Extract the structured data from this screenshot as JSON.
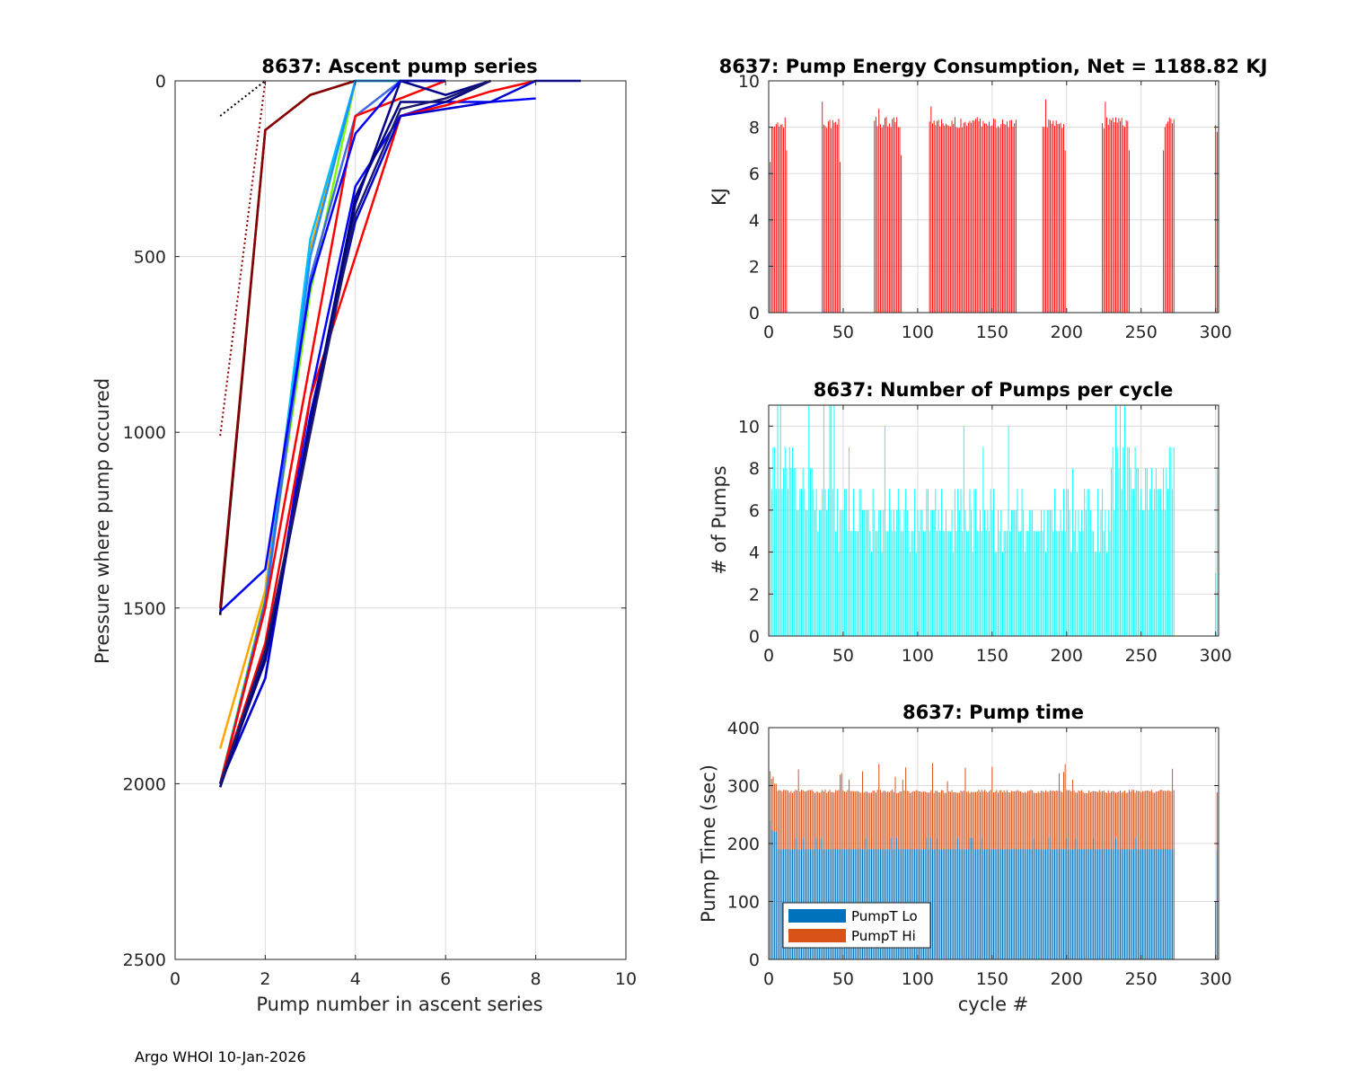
{
  "footer": "Argo WHOI 10-Jan-2026",
  "colors": {
    "energy": "#ff0000",
    "pumps": "#00ffff",
    "pumpLo": "#0072bd",
    "pumpHi": "#d95319",
    "grid": "#dcdcdc",
    "axis": "#262626"
  },
  "chart_data": [
    {
      "id": "ascent",
      "type": "line",
      "title": "8637: Ascent pump series",
      "xlabel": "Pump number in ascent series",
      "ylabel": "Pressure where pump occured",
      "xlim": [
        0,
        10
      ],
      "ylim": [
        0,
        2500
      ],
      "y_reversed": true,
      "xticks": [
        0,
        2,
        4,
        6,
        8,
        10
      ],
      "yticks": [
        0,
        500,
        1000,
        1500,
        2000,
        2500
      ],
      "grid": true,
      "series": [
        {
          "color": "#000000",
          "dotted": true,
          "x": [
            1,
            2
          ],
          "y": [
            100,
            0
          ]
        },
        {
          "color": "#8b0000",
          "dotted": true,
          "x": [
            1,
            2
          ],
          "y": [
            1010,
            0
          ]
        },
        {
          "color": "#000000",
          "x": [
            1,
            2,
            3,
            4
          ],
          "y": [
            1520,
            140,
            40,
            0
          ]
        },
        {
          "color": "#8b0000",
          "x": [
            1,
            2,
            3,
            4
          ],
          "y": [
            1500,
            140,
            40,
            0
          ]
        },
        {
          "color": "#ffa500",
          "x": [
            1,
            2,
            3,
            4,
            5,
            6
          ],
          "y": [
            1900,
            1450,
            480,
            0,
            0,
            0
          ]
        },
        {
          "color": "#7cfc00",
          "x": [
            1,
            2,
            3,
            4,
            5
          ],
          "y": [
            2000,
            1470,
            600,
            0,
            0
          ]
        },
        {
          "color": "#00bfff",
          "x": [
            1,
            2,
            3,
            4,
            5
          ],
          "y": [
            2000,
            1480,
            450,
            0,
            0
          ]
        },
        {
          "color": "#1e90ff",
          "x": [
            1,
            2,
            3,
            4,
            5,
            6
          ],
          "y": [
            2000,
            1500,
            500,
            0,
            0,
            0
          ]
        },
        {
          "color": "#4169e1",
          "x": [
            1,
            2,
            3,
            4,
            5,
            6
          ],
          "y": [
            2010,
            1480,
            560,
            100,
            0,
            0
          ]
        },
        {
          "color": "#0000ff",
          "x": [
            1,
            2,
            3,
            4,
            5,
            6,
            7,
            8
          ],
          "y": [
            2000,
            1700,
            900,
            300,
            100,
            60,
            60,
            50
          ]
        },
        {
          "color": "#ff0000",
          "x": [
            1,
            2,
            3,
            4,
            5,
            6,
            7,
            8
          ],
          "y": [
            2000,
            1600,
            900,
            500,
            100,
            70,
            30,
            0
          ]
        },
        {
          "color": "#ff0000",
          "x": [
            1,
            2,
            3,
            4,
            5,
            6
          ],
          "y": [
            2000,
            1500,
            800,
            100,
            50,
            0
          ]
        },
        {
          "color": "#0000cd",
          "x": [
            1,
            2,
            3,
            4,
            5,
            6,
            7,
            8,
            9
          ],
          "y": [
            2000,
            1700,
            950,
            400,
            100,
            80,
            60,
            0,
            0
          ]
        },
        {
          "color": "#00008b",
          "x": [
            1,
            2,
            3,
            4,
            5,
            6,
            7
          ],
          "y": [
            2000,
            1650,
            1000,
            350,
            0,
            40,
            0
          ]
        },
        {
          "color": "#000080",
          "x": [
            1,
            2,
            3,
            4,
            5,
            6,
            7
          ],
          "y": [
            2010,
            1640,
            980,
            330,
            60,
            60,
            0
          ]
        },
        {
          "color": "#191970",
          "x": [
            1,
            2,
            3,
            4,
            5,
            6,
            7
          ],
          "y": [
            2000,
            1620,
            1000,
            380,
            80,
            50,
            0
          ]
        },
        {
          "color": "#0000ff",
          "x": [
            1,
            2,
            3,
            4,
            5,
            6
          ],
          "y": [
            1510,
            1390,
            580,
            150,
            0,
            0
          ]
        }
      ]
    },
    {
      "id": "energy",
      "type": "bar",
      "title": "8637: Pump Energy Consumption,  Net = 1188.82 KJ",
      "xlabel": "",
      "ylabel": "KJ",
      "xlim": [
        0,
        302
      ],
      "ylim": [
        0,
        10
      ],
      "xticks": [
        0,
        50,
        100,
        150,
        200,
        250,
        300
      ],
      "yticks": [
        0,
        2,
        4,
        6,
        8,
        10
      ],
      "grid": true,
      "segments": [
        [
          1,
          12
        ],
        [
          36,
          48
        ],
        [
          71,
          89
        ],
        [
          108,
          166
        ],
        [
          184,
          199
        ],
        [
          224,
          242
        ],
        [
          265,
          272
        ],
        [
          300,
          301
        ]
      ],
      "base_value": 8.2,
      "peaks": [
        {
          "x": 36,
          "v": 9.1
        },
        {
          "x": 74,
          "v": 8.8
        },
        {
          "x": 109,
          "v": 8.9
        },
        {
          "x": 186,
          "v": 9.2
        },
        {
          "x": 226,
          "v": 9.1
        }
      ],
      "low": [
        {
          "x": 12,
          "v": 7.0
        },
        {
          "x": 48,
          "v": 6.5
        },
        {
          "x": 89,
          "v": 6.8
        },
        {
          "x": 199,
          "v": 7.0
        },
        {
          "x": 242,
          "v": 7.0
        },
        {
          "x": 265,
          "v": 7.0
        },
        {
          "x": 301,
          "v": 7.8
        },
        {
          "x": 1,
          "v": 6.5
        }
      ]
    },
    {
      "id": "pumps",
      "type": "bar",
      "title": "8637: Number of Pumps per cycle",
      "xlabel": "",
      "ylabel": "# of Pumps",
      "xlim": [
        0,
        302
      ],
      "ylim": [
        0,
        11
      ],
      "xticks": [
        0,
        50,
        100,
        150,
        200,
        250,
        300
      ],
      "yticks": [
        0,
        2,
        4,
        6,
        8,
        10
      ],
      "grid": true,
      "x_range": [
        1,
        272
      ],
      "extra_x": [
        300,
        301
      ]
    },
    {
      "id": "pumptime",
      "type": "bar",
      "stacked": true,
      "title": "8637: Pump time",
      "xlabel": "cycle #",
      "ylabel": "Pump Time (sec)",
      "xlim": [
        0,
        302
      ],
      "ylim": [
        0,
        400
      ],
      "xticks": [
        0,
        50,
        100,
        150,
        200,
        250,
        300
      ],
      "yticks": [
        0,
        100,
        200,
        300,
        400
      ],
      "grid": true,
      "x_range": [
        1,
        272
      ],
      "extra_x": [
        300,
        301
      ],
      "lo_value": 190,
      "total_value": 290,
      "legend": [
        "PumpT Lo",
        "PumpT Hi"
      ],
      "legend_position": "bottom-left"
    }
  ]
}
